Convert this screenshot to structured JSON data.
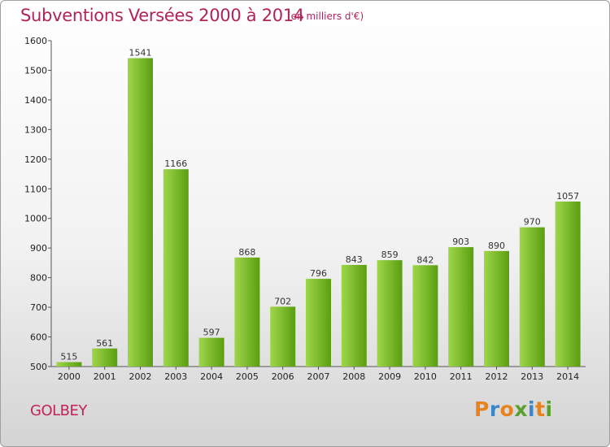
{
  "header": {
    "title": "Subventions Versées 2000 à 2014",
    "unit": "(en milliers d'€)"
  },
  "footer": {
    "commune": "GOLBEY",
    "logo": "Proxiti"
  },
  "colors": {
    "title": "#b0245a",
    "bar_light": "#9fd64a",
    "bar_dark": "#5a9e10",
    "logo_letters": [
      "#e8821e",
      "#3a86c8",
      "#e8821e",
      "#5aa02c",
      "#3a86c8",
      "#e8821e",
      "#5aa02c"
    ]
  },
  "chart_data": {
    "type": "bar",
    "categories": [
      "2000",
      "2001",
      "2002",
      "2003",
      "2004",
      "2005",
      "2006",
      "2007",
      "2008",
      "2009",
      "2010",
      "2011",
      "2012",
      "2013",
      "2014"
    ],
    "values": [
      515,
      561,
      1541,
      1166,
      597,
      868,
      702,
      796,
      843,
      859,
      842,
      903,
      890,
      970,
      1057
    ],
    "title": "Subventions Versées 2000 à 2014",
    "ylim": [
      500,
      1600
    ],
    "yticks": [
      500,
      600,
      700,
      800,
      900,
      1000,
      1100,
      1200,
      1300,
      1400,
      1500,
      1600
    ],
    "grid": false,
    "data_labels": true
  }
}
